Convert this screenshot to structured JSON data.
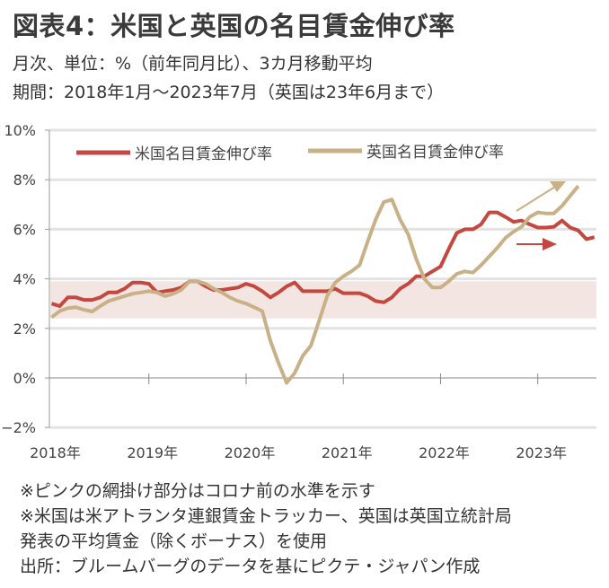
{
  "header": {
    "title": "図表4：米国と英国の名目賃金伸び率",
    "subtitle1": "月次、単位：%（前年同月比）、3カ月移動平均",
    "subtitle2": "期間：2018年1月～2023年7月（英国は23年6月まで）"
  },
  "notes": [
    "※ピンクの網掛け部分はコロナ前の水準を示す",
    "※米国は米アトランタ連銀賃金トラッカー、英国は英国立統計局",
    "発表の平均賃金（除くボーナス）を使用",
    "出所：ブルームバーグのデータを基にピクテ・ジャパン作成"
  ],
  "chart_data": {
    "type": "line",
    "title": "",
    "xlabel": "",
    "ylabel": "",
    "x_start": "2018-01",
    "x_frequency": "monthly",
    "x_tick_labels": [
      "2018年",
      "2019年",
      "2020年",
      "2021年",
      "2022年",
      "2023年"
    ],
    "y_tick_labels": [
      "10%",
      "8%",
      "6%",
      "4%",
      "2%",
      "0%",
      "−2%"
    ],
    "y_ticks": [
      10,
      8,
      6,
      4,
      2,
      0,
      -2
    ],
    "ylim": [
      -2,
      10
    ],
    "grid": true,
    "legend_placement": "top",
    "shaded_band": {
      "from": 2.4,
      "to": 3.9,
      "color": "#f3e6e2",
      "meaning": "コロナ前の水準"
    },
    "series": [
      {
        "name": "米国名目賃金伸び率",
        "color": "#c4483f",
        "start": "2018-01",
        "values": [
          3.0,
          2.9,
          3.25,
          3.25,
          3.15,
          3.15,
          3.25,
          3.45,
          3.45,
          3.6,
          3.85,
          3.85,
          3.8,
          3.45,
          3.5,
          3.55,
          3.65,
          3.9,
          3.9,
          3.7,
          3.55,
          3.55,
          3.6,
          3.65,
          3.8,
          3.7,
          3.5,
          3.25,
          3.45,
          3.7,
          3.85,
          3.5,
          3.5,
          3.5,
          3.5,
          3.6,
          3.42,
          3.42,
          3.42,
          3.3,
          3.1,
          3.05,
          3.25,
          3.6,
          3.8,
          4.1,
          4.1,
          4.3,
          4.5,
          5.2,
          5.85,
          6.0,
          6.0,
          6.2,
          6.68,
          6.68,
          6.5,
          6.3,
          6.35,
          6.2,
          6.07,
          6.07,
          6.1,
          6.35,
          6.07,
          5.95,
          5.6,
          5.68
        ]
      },
      {
        "name": "英国名目賃金伸び率",
        "color": "#c9b187",
        "start": "2018-01",
        "values": [
          2.45,
          2.7,
          2.82,
          2.85,
          2.75,
          2.68,
          2.9,
          3.1,
          3.2,
          3.3,
          3.4,
          3.45,
          3.5,
          3.45,
          3.3,
          3.4,
          3.55,
          3.9,
          3.9,
          3.8,
          3.6,
          3.45,
          3.25,
          3.1,
          3.0,
          2.85,
          2.7,
          1.5,
          0.6,
          -0.2,
          0.2,
          0.9,
          1.3,
          2.3,
          3.3,
          3.85,
          4.1,
          4.3,
          4.55,
          5.5,
          6.4,
          7.1,
          7.2,
          6.4,
          5.8,
          4.8,
          4.0,
          3.65,
          3.65,
          3.9,
          4.2,
          4.3,
          4.25,
          4.55,
          4.9,
          5.25,
          5.65,
          5.9,
          6.1,
          6.5,
          6.68,
          6.64,
          6.64,
          6.95,
          7.35,
          7.75
        ]
      }
    ],
    "annotations": [
      {
        "type": "arrow",
        "direction": "up-right",
        "color": "#c9b187"
      },
      {
        "type": "arrow",
        "direction": "right",
        "color": "#c4483f"
      }
    ]
  }
}
